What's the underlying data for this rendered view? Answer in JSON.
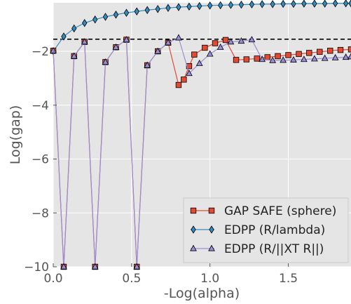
{
  "chart_data": {
    "type": "line",
    "title": "",
    "xlabel": "-Log(alpha)",
    "ylabel": "Log(gap)",
    "xlim": [
      0.0,
      1.9
    ],
    "ylim": [
      -10,
      -0.2
    ],
    "x_ticks": [
      0.0,
      0.5,
      1.0,
      1.5
    ],
    "x_tick_labels": [
      "0.0",
      "0.5",
      "1.0",
      "1.5"
    ],
    "y_ticks": [
      -10,
      -8,
      -6,
      -4,
      -2
    ],
    "y_tick_labels": [
      "−10",
      "−8",
      "−6",
      "−4",
      "−2"
    ],
    "grid": true,
    "background": "#e5e5e5",
    "legend_position": "lower-right",
    "reference_line": {
      "y": -1.55,
      "style": "dashed",
      "color": "#000000"
    },
    "series": [
      {
        "name": "GAP SAFE (sphere)",
        "marker": "square",
        "color": "#e24a33",
        "x": [
          0.0,
          0.067,
          0.133,
          0.2,
          0.267,
          0.333,
          0.4,
          0.467,
          0.533,
          0.6,
          0.667,
          0.733,
          0.8,
          0.833,
          0.867,
          0.9,
          0.967,
          1.033,
          1.1,
          1.167,
          1.233,
          1.3,
          1.367,
          1.433,
          1.5,
          1.567,
          1.633,
          1.7,
          1.767,
          1.833,
          1.9
        ],
        "y": [
          -1.98,
          -10.0,
          -2.18,
          -1.65,
          -10.0,
          -2.4,
          -1.85,
          -1.57,
          -10.0,
          -2.52,
          -2.0,
          -1.68,
          -3.25,
          -3.05,
          -2.55,
          -2.12,
          -1.87,
          -1.7,
          -1.58,
          -2.32,
          -2.3,
          -2.27,
          -2.22,
          -2.18,
          -2.14,
          -2.1,
          -2.06,
          -2.02,
          -1.98,
          -1.95,
          -1.93
        ]
      },
      {
        "name": "EDPP (R/lambda)",
        "marker": "diamond",
        "color": "#348abd",
        "x": [
          0.0,
          0.067,
          0.133,
          0.2,
          0.267,
          0.333,
          0.4,
          0.467,
          0.533,
          0.6,
          0.667,
          0.733,
          0.8,
          0.867,
          0.933,
          1.0,
          1.067,
          1.133,
          1.2,
          1.267,
          1.333,
          1.4,
          1.467,
          1.533,
          1.6,
          1.667,
          1.733,
          1.8,
          1.867,
          1.9
        ],
        "y": [
          -2.0,
          -1.45,
          -1.15,
          -0.95,
          -0.82,
          -0.72,
          -0.64,
          -0.57,
          -0.52,
          -0.47,
          -0.43,
          -0.39,
          -0.36,
          -0.34,
          -0.32,
          -0.3,
          -0.29,
          -0.28,
          -0.27,
          -0.26,
          -0.25,
          -0.25,
          -0.24,
          -0.24,
          -0.23,
          -0.23,
          -0.23,
          -0.22,
          -0.22,
          -0.22
        ]
      },
      {
        "name": "EDPP (R/||XT R||)",
        "marker": "triangle",
        "color": "#988ed5",
        "x": [
          0.0,
          0.067,
          0.133,
          0.2,
          0.267,
          0.333,
          0.4,
          0.467,
          0.533,
          0.6,
          0.667,
          0.733,
          0.8,
          0.867,
          0.933,
          1.0,
          1.067,
          1.133,
          1.2,
          1.267,
          1.333,
          1.4,
          1.467,
          1.533,
          1.6,
          1.667,
          1.733,
          1.8,
          1.867,
          1.9
        ],
        "y": [
          -1.98,
          -10.0,
          -2.18,
          -1.65,
          -10.0,
          -2.4,
          -1.85,
          -1.57,
          -10.0,
          -2.52,
          -2.0,
          -1.68,
          -1.5,
          -2.82,
          -2.45,
          -2.1,
          -1.85,
          -1.65,
          -1.62,
          -1.57,
          -2.3,
          -2.34,
          -2.33,
          -2.32,
          -2.3,
          -2.28,
          -2.26,
          -2.24,
          -2.22,
          -2.2
        ]
      }
    ]
  }
}
